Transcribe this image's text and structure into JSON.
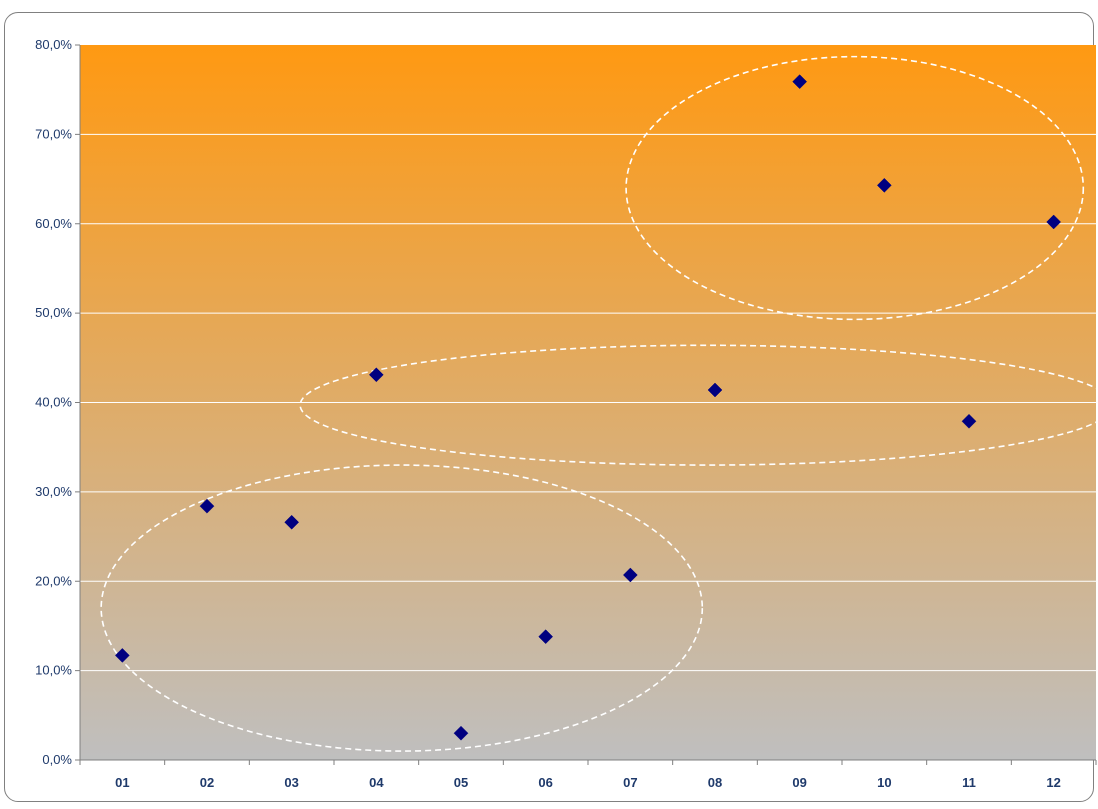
{
  "chart_data": {
    "type": "scatter",
    "title": "",
    "xlabel": "",
    "ylabel": "",
    "categories": [
      "01",
      "02",
      "03",
      "04",
      "05",
      "06",
      "07",
      "08",
      "09",
      "10",
      "11",
      "12"
    ],
    "series": [
      {
        "values": [
          11.7,
          28.4,
          26.6,
          43.1,
          3.0,
          13.8,
          20.7,
          41.4,
          75.9,
          64.3,
          37.9,
          60.2
        ],
        "color": "#000080"
      }
    ],
    "ylim": [
      0,
      80
    ],
    "yticks": [
      "0,0%",
      "10,0%",
      "20,0%",
      "30,0%",
      "40,0%",
      "50,0%",
      "60,0%",
      "70,0%",
      "80,0%"
    ],
    "grid": true,
    "legend": "none",
    "background_gradient": [
      "#ff9912",
      "#bfbfbf"
    ],
    "annotations": [
      {
        "shape": "dashed-ellipse",
        "x_center": 9.65,
        "y_center": 64.0,
        "x_radius": 2.7,
        "y_radius": 14.7
      },
      {
        "shape": "dashed-ellipse",
        "x_center": 7.9,
        "y_center": 39.7,
        "x_radius": 4.8,
        "y_radius": 6.7
      },
      {
        "shape": "dashed-ellipse",
        "x_center": 4.3,
        "y_center": 17.0,
        "x_radius": 3.55,
        "y_radius": 16.0
      }
    ]
  }
}
